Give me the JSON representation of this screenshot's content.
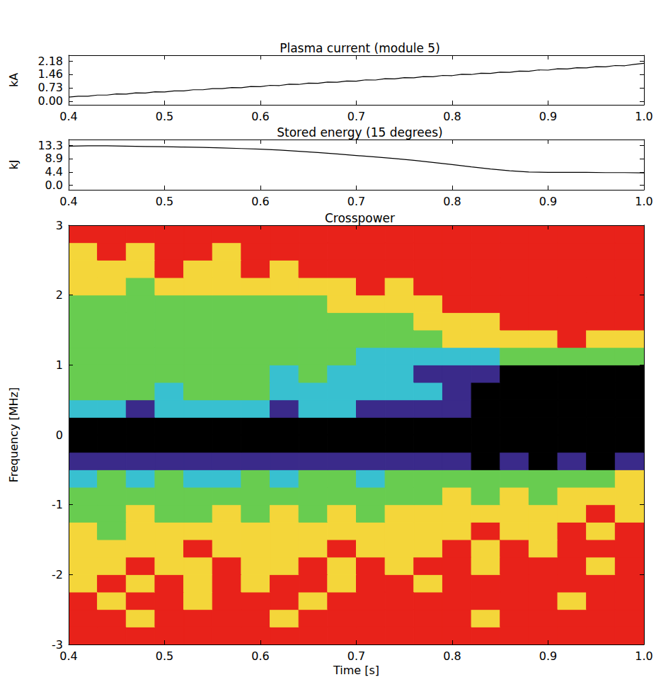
{
  "chart_data": [
    {
      "type": "line",
      "title": "Plasma current (module 5)",
      "y_label": "kA",
      "color": "#000000",
      "grid": false,
      "x": [
        0.4,
        0.41,
        0.42,
        0.43,
        0.44,
        0.45,
        0.46,
        0.47,
        0.48,
        0.49,
        0.5,
        0.51,
        0.52,
        0.53,
        0.54,
        0.55,
        0.56,
        0.57,
        0.58,
        0.59,
        0.6,
        0.61,
        0.62,
        0.63,
        0.64,
        0.65,
        0.66,
        0.67,
        0.68,
        0.69,
        0.7,
        0.71,
        0.72,
        0.73,
        0.74,
        0.75,
        0.76,
        0.77,
        0.78,
        0.79,
        0.8,
        0.81,
        0.82,
        0.83,
        0.84,
        0.85,
        0.86,
        0.87,
        0.88,
        0.89,
        0.9,
        0.91,
        0.92,
        0.93,
        0.94,
        0.95,
        0.96,
        0.97,
        0.98,
        0.99,
        1.0
      ],
      "values": [
        0.22,
        0.27,
        0.27,
        0.33,
        0.33,
        0.39,
        0.38,
        0.45,
        0.44,
        0.51,
        0.5,
        0.56,
        0.56,
        0.62,
        0.62,
        0.68,
        0.68,
        0.74,
        0.73,
        0.8,
        0.79,
        0.86,
        0.85,
        0.92,
        0.91,
        0.98,
        0.97,
        1.04,
        1.03,
        1.1,
        1.09,
        1.16,
        1.15,
        1.22,
        1.21,
        1.28,
        1.27,
        1.34,
        1.33,
        1.4,
        1.39,
        1.46,
        1.45,
        1.52,
        1.51,
        1.58,
        1.57,
        1.64,
        1.63,
        1.7,
        1.69,
        1.76,
        1.75,
        1.82,
        1.81,
        1.88,
        1.87,
        1.94,
        1.93,
        2.0,
        2.06
      ],
      "xlim": [
        0.4,
        1.0
      ],
      "xticks": [
        0.4,
        0.5,
        0.6,
        0.7,
        0.8,
        0.9,
        {
          "value": 1,
          "label": "1.0"
        }
      ],
      "ylim": [
        -0.2,
        2.5
      ],
      "yticks": [
        {
          "value": 0,
          "label": "0.00"
        },
        0.73,
        1.46,
        2.18
      ]
    },
    {
      "type": "line",
      "title": "Stored energy (15 degrees)",
      "y_label": "kJ",
      "color": "#000000",
      "grid": false,
      "x": [
        0.4,
        0.42,
        0.44,
        0.46,
        0.48,
        0.5,
        0.52,
        0.54,
        0.56,
        0.58,
        0.6,
        0.62,
        0.64,
        0.66,
        0.68,
        0.7,
        0.72,
        0.74,
        0.76,
        0.78,
        0.8,
        0.82,
        0.84,
        0.86,
        0.88,
        0.9,
        0.92,
        0.94,
        0.96,
        0.98,
        1.0
      ],
      "values": [
        13.0,
        13.1,
        13.1,
        13.0,
        12.9,
        12.8,
        12.7,
        12.6,
        12.4,
        12.2,
        12.0,
        11.7,
        11.3,
        10.9,
        10.4,
        9.9,
        9.4,
        8.9,
        8.3,
        7.6,
        6.9,
        6.1,
        5.4,
        4.8,
        4.4,
        4.3,
        4.3,
        4.3,
        4.2,
        4.2,
        4.1
      ],
      "xlim": [
        0.4,
        1.0
      ],
      "xticks": [
        0.4,
        0.5,
        0.6,
        0.7,
        0.8,
        0.9,
        {
          "value": 1,
          "label": "1.0"
        }
      ],
      "ylim": [
        -1.5,
        15.2
      ],
      "yticks": [
        {
          "value": 0,
          "label": "0.0"
        },
        4.4,
        8.9,
        13.3
      ]
    },
    {
      "type": "heatmap",
      "title": "Crosspower",
      "x_label": "Time [s]",
      "y_label": "Frequency [MHz]",
      "grid": false,
      "time_edges": [
        0.4,
        0.43,
        0.46,
        0.49,
        0.52,
        0.55,
        0.58,
        0.61,
        0.64,
        0.67,
        0.7,
        0.73,
        0.76,
        0.79,
        0.82,
        0.85,
        0.88,
        0.91,
        0.94,
        0.97,
        1.0
      ],
      "frequency_edges": [
        -3,
        -2.75,
        -2.5,
        -2.25,
        -2,
        -1.75,
        -1.5,
        -1.25,
        -1,
        -0.75,
        -0.5,
        -0.25,
        0,
        0.25,
        0.5,
        0.75,
        1,
        1.25,
        1.5,
        1.75,
        2,
        2.25,
        2.5,
        2.75,
        3
      ],
      "cells": [
        [
          0,
          0,
          0,
          0,
          0,
          0,
          0,
          0,
          0,
          0,
          0,
          0,
          0,
          0,
          0,
          0,
          0,
          0,
          0,
          0
        ],
        [
          0,
          0,
          1,
          0,
          0,
          0,
          0,
          1,
          0,
          0,
          0,
          0,
          0,
          0,
          1,
          0,
          0,
          0,
          0,
          0
        ],
        [
          0,
          1,
          0,
          0,
          1,
          0,
          0,
          0,
          1,
          0,
          0,
          0,
          0,
          0,
          0,
          0,
          0,
          1,
          0,
          0
        ],
        [
          1,
          0,
          1,
          0,
          1,
          0,
          1,
          0,
          0,
          1,
          0,
          0,
          1,
          0,
          0,
          0,
          0,
          0,
          0,
          0
        ],
        [
          1,
          1,
          0,
          1,
          1,
          0,
          1,
          1,
          0,
          1,
          0,
          1,
          0,
          0,
          1,
          0,
          0,
          0,
          1,
          0
        ],
        [
          1,
          1,
          1,
          1,
          0,
          1,
          1,
          1,
          1,
          0,
          1,
          1,
          1,
          0,
          1,
          0,
          1,
          0,
          0,
          0
        ],
        [
          1,
          2,
          1,
          1,
          1,
          1,
          1,
          1,
          1,
          1,
          1,
          1,
          1,
          1,
          0,
          1,
          1,
          0,
          1,
          0
        ],
        [
          2,
          2,
          1,
          2,
          2,
          1,
          2,
          1,
          2,
          1,
          2,
          1,
          1,
          1,
          1,
          1,
          1,
          1,
          0,
          1
        ],
        [
          2,
          2,
          2,
          2,
          2,
          2,
          2,
          2,
          2,
          2,
          2,
          2,
          2,
          1,
          2,
          1,
          2,
          1,
          1,
          1
        ],
        [
          3,
          2,
          3,
          2,
          3,
          3,
          2,
          3,
          2,
          2,
          3,
          2,
          2,
          2,
          2,
          2,
          2,
          2,
          2,
          1
        ],
        [
          4,
          4,
          4,
          4,
          4,
          4,
          4,
          4,
          4,
          4,
          4,
          4,
          4,
          4,
          5,
          4,
          5,
          4,
          5,
          4
        ],
        [
          5,
          5,
          5,
          5,
          5,
          5,
          5,
          5,
          5,
          5,
          5,
          5,
          5,
          5,
          5,
          5,
          5,
          5,
          5,
          5
        ],
        [
          5,
          5,
          5,
          5,
          5,
          5,
          5,
          5,
          5,
          5,
          5,
          5,
          5,
          5,
          5,
          5,
          5,
          5,
          5,
          5
        ],
        [
          3,
          3,
          4,
          3,
          3,
          3,
          3,
          4,
          3,
          3,
          4,
          4,
          4,
          4,
          5,
          5,
          5,
          5,
          5,
          5
        ],
        [
          2,
          2,
          2,
          3,
          2,
          2,
          2,
          3,
          3,
          3,
          3,
          3,
          3,
          4,
          5,
          5,
          5,
          5,
          5,
          5
        ],
        [
          2,
          2,
          2,
          2,
          2,
          2,
          2,
          3,
          2,
          3,
          3,
          3,
          4,
          4,
          4,
          5,
          5,
          5,
          5,
          5
        ],
        [
          2,
          2,
          2,
          2,
          2,
          2,
          2,
          2,
          2,
          2,
          3,
          3,
          3,
          3,
          3,
          2,
          2,
          2,
          2,
          2
        ],
        [
          2,
          2,
          2,
          2,
          2,
          2,
          2,
          2,
          2,
          2,
          2,
          2,
          2,
          1,
          1,
          1,
          1,
          0,
          1,
          1
        ],
        [
          2,
          2,
          2,
          2,
          2,
          2,
          2,
          2,
          2,
          2,
          2,
          2,
          1,
          1,
          1,
          0,
          0,
          0,
          0,
          0
        ],
        [
          2,
          2,
          2,
          2,
          2,
          2,
          2,
          2,
          2,
          1,
          1,
          1,
          1,
          0,
          0,
          0,
          0,
          0,
          0,
          0
        ],
        [
          1,
          1,
          2,
          1,
          1,
          1,
          1,
          1,
          1,
          1,
          0,
          1,
          0,
          0,
          0,
          0,
          0,
          0,
          0,
          0
        ],
        [
          1,
          1,
          1,
          0,
          1,
          1,
          0,
          1,
          0,
          0,
          0,
          0,
          0,
          0,
          0,
          0,
          0,
          0,
          0,
          0
        ],
        [
          1,
          0,
          1,
          0,
          0,
          1,
          0,
          0,
          0,
          0,
          0,
          0,
          0,
          0,
          0,
          0,
          0,
          0,
          0,
          0
        ],
        [
          0,
          0,
          0,
          0,
          0,
          0,
          0,
          0,
          0,
          0,
          0,
          0,
          0,
          0,
          0,
          0,
          0,
          0,
          0,
          0
        ]
      ],
      "zlim": [
        0,
        5
      ],
      "xlim": [
        0.4,
        1.0
      ],
      "xticks": [
        0.4,
        0.5,
        0.6,
        0.7,
        0.8,
        0.9,
        {
          "value": 1,
          "label": "1.0"
        }
      ],
      "ylim": [
        -3,
        3
      ],
      "yticks": [
        -3,
        -2,
        -1,
        0,
        1,
        2,
        3
      ]
    }
  ]
}
